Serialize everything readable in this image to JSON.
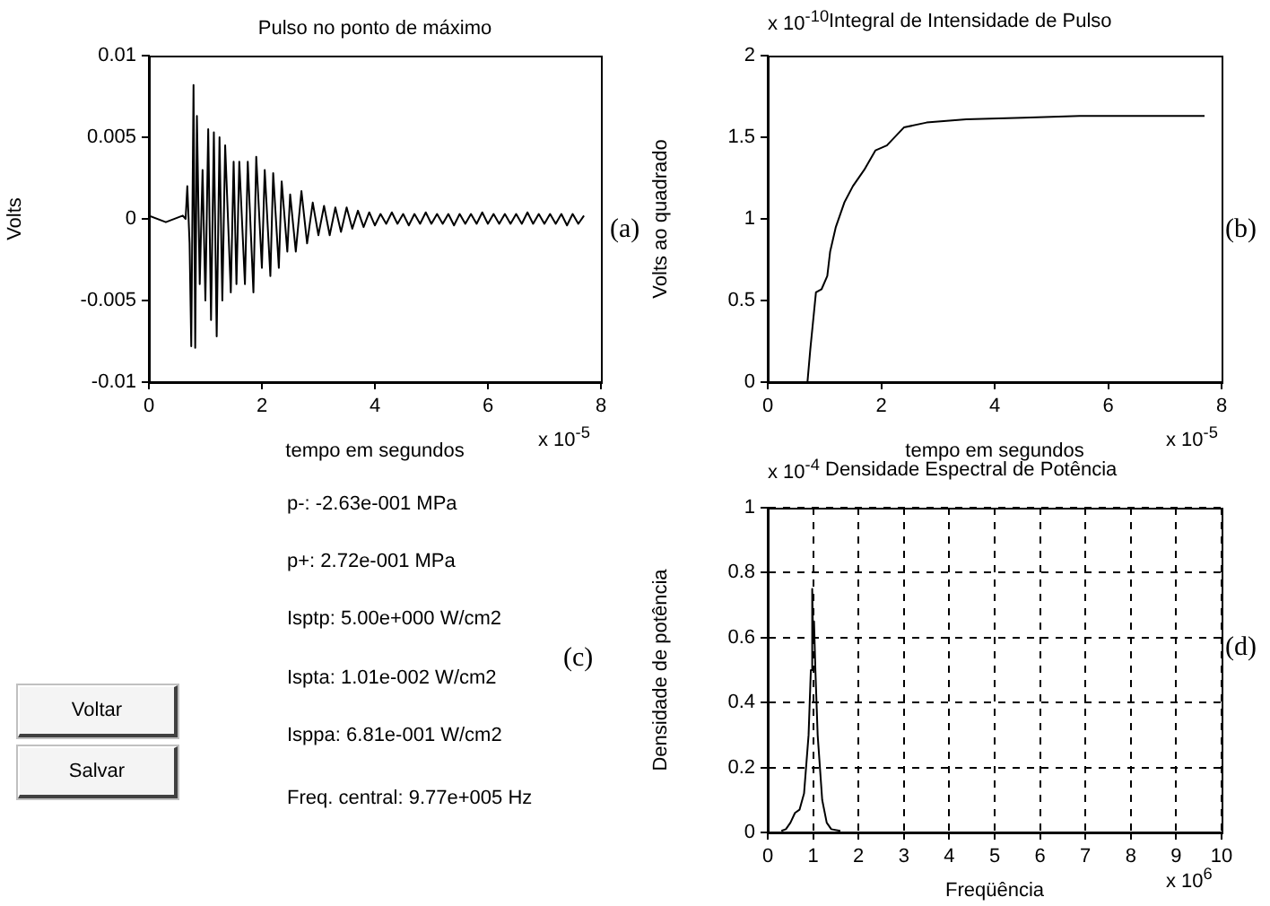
{
  "chart_data": [
    {
      "type": "line",
      "title": "Pulso no ponto de máximo",
      "xlabel": "tempo em segundos",
      "ylabel": "Volts",
      "xlim": [
        0,
        8
      ],
      "xticks": [
        0,
        2,
        4,
        6,
        8
      ],
      "ylim": [
        -0.01,
        0.01
      ],
      "yticks": [
        -0.01,
        -0.005,
        0,
        0.005,
        0.01
      ],
      "grid": false,
      "marker": "none",
      "line_style": "solid",
      "annotations": [
        "x 10$^{-5}$",
        "(a)"
      ],
      "series": [
        {
          "color": "#000000",
          "x": [
            0,
            0.3,
            0.6,
            0.65,
            0.68,
            0.72,
            0.75,
            0.79,
            0.82,
            0.85,
            0.9,
            0.95,
            1.0,
            1.05,
            1.1,
            1.15,
            1.2,
            1.25,
            1.3,
            1.35,
            1.45,
            1.5,
            1.55,
            1.6,
            1.7,
            1.75,
            1.85,
            1.9,
            2.0,
            2.05,
            2.15,
            2.2,
            2.3,
            2.35,
            2.45,
            2.5,
            2.6,
            2.7,
            2.8,
            2.9,
            3.0,
            3.1,
            3.2,
            3.3,
            3.4,
            3.5,
            3.6,
            3.7,
            3.8,
            3.9,
            4.0,
            4.1,
            4.2,
            4.3,
            4.4,
            4.5,
            4.6,
            4.7,
            4.8,
            4.9,
            5.0,
            5.1,
            5.2,
            5.3,
            5.4,
            5.5,
            5.6,
            5.7,
            5.8,
            5.9,
            6.0,
            6.1,
            6.2,
            6.3,
            6.4,
            6.5,
            6.6,
            6.7,
            6.8,
            6.9,
            7.0,
            7.1,
            7.2,
            7.3,
            7.4,
            7.5,
            7.6,
            7.7
          ],
          "values": [
            0.0002,
            -0.0002,
            0.0002,
            0,
            0.002,
            -0.0015,
            -0.0078,
            0.0082,
            -0.0079,
            0.0063,
            -0.004,
            0.003,
            -0.005,
            0.0055,
            -0.0062,
            0.0053,
            -0.0072,
            0.005,
            -0.005,
            0.0045,
            -0.0045,
            0.0035,
            -0.004,
            0.0035,
            -0.004,
            0.0035,
            -0.0045,
            0.0038,
            -0.003,
            0.003,
            -0.0035,
            0.0028,
            -0.003,
            0.0023,
            -0.002,
            0.0015,
            -0.002,
            0.0017,
            -0.0015,
            0.001,
            -0.001,
            0.0008,
            -0.001,
            0.0007,
            -0.0008,
            0.0007,
            -0.0006,
            0.0005,
            -0.0005,
            0.0004,
            -0.0004,
            0.0003,
            -0.0003,
            0.0004,
            -0.0003,
            0.0003,
            -0.0004,
            0.0003,
            -0.0003,
            0.0004,
            -0.0003,
            0.0003,
            -0.0003,
            0.0003,
            -0.0004,
            0.0003,
            -0.0003,
            0.0003,
            -0.0003,
            0.0004,
            -0.0003,
            0.0003,
            -0.0003,
            0.0003,
            -0.0003,
            0.0003,
            -0.0003,
            0.0004,
            -0.0003,
            0.0003,
            -0.0003,
            0.0003,
            -0.0003,
            0.0003,
            -0.0004,
            0.0003,
            -0.0003,
            0.0002
          ]
        }
      ]
    },
    {
      "type": "line",
      "title": "Integral de Intensidade de Pulso",
      "xlabel": "tempo em segundos",
      "ylabel": "Volts ao quadrado",
      "xlim": [
        0,
        8
      ],
      "xticks": [
        0,
        2,
        4,
        6,
        8
      ],
      "ylim": [
        0,
        2
      ],
      "yticks": [
        0,
        0.5,
        1,
        1.5,
        2
      ],
      "grid": false,
      "marker": "none",
      "line_style": "solid",
      "annotations": [
        "x 10$^{-10}$",
        "x 10$^{-5}$",
        "(b)"
      ],
      "series": [
        {
          "color": "#000000",
          "x": [
            0,
            0.7,
            0.75,
            0.85,
            0.95,
            1.05,
            1.1,
            1.2,
            1.35,
            1.5,
            1.7,
            1.9,
            2.1,
            2.4,
            2.8,
            3.5,
            4.5,
            5.5,
            7.7
          ],
          "values": [
            0,
            0,
            0.2,
            0.55,
            0.57,
            0.65,
            0.8,
            0.95,
            1.1,
            1.2,
            1.3,
            1.42,
            1.45,
            1.56,
            1.59,
            1.61,
            1.62,
            1.63,
            1.63
          ]
        }
      ]
    },
    {
      "type": "other",
      "annotations": [
        "p-: -2.63e-001 MPa",
        "p+: 2.72e-001 MPa",
        "Isptp: 5.00e+000 W/cm2",
        "Ispta: 1.01e-002 W/cm2",
        "Isppa: 6.81e-001 W/cm2",
        "Freq. central: 9.77e+005 Hz",
        "(c)",
        "Voltar",
        "Salvar"
      ]
    },
    {
      "type": "line",
      "title": "Densidade Espectral de Potência",
      "xlabel": "Freqüência",
      "ylabel": "Densidade de potência",
      "xlim": [
        0,
        10
      ],
      "xticks": [
        0,
        1,
        2,
        3,
        4,
        5,
        6,
        7,
        8,
        9,
        10
      ],
      "ylim": [
        0,
        1
      ],
      "yticks": [
        0,
        0.2,
        0.4,
        0.6,
        0.8,
        1
      ],
      "grid": true,
      "marker": "none",
      "line_style": "solid",
      "annotations": [
        "x 10$^{-4}$",
        "x 10$^{6}$",
        "(d)"
      ],
      "series": [
        {
          "color": "#000000",
          "x": [
            0.3,
            0.4,
            0.5,
            0.6,
            0.7,
            0.8,
            0.9,
            0.95,
            0.98,
            1.0,
            1.02,
            1.05,
            1.1,
            1.2,
            1.3,
            1.4,
            1.6
          ],
          "values": [
            0.005,
            0.01,
            0.03,
            0.06,
            0.07,
            0.12,
            0.3,
            0.5,
            0.75,
            0.6,
            0.65,
            0.5,
            0.3,
            0.1,
            0.03,
            0.01,
            0.005
          ]
        }
      ]
    }
  ]
}
